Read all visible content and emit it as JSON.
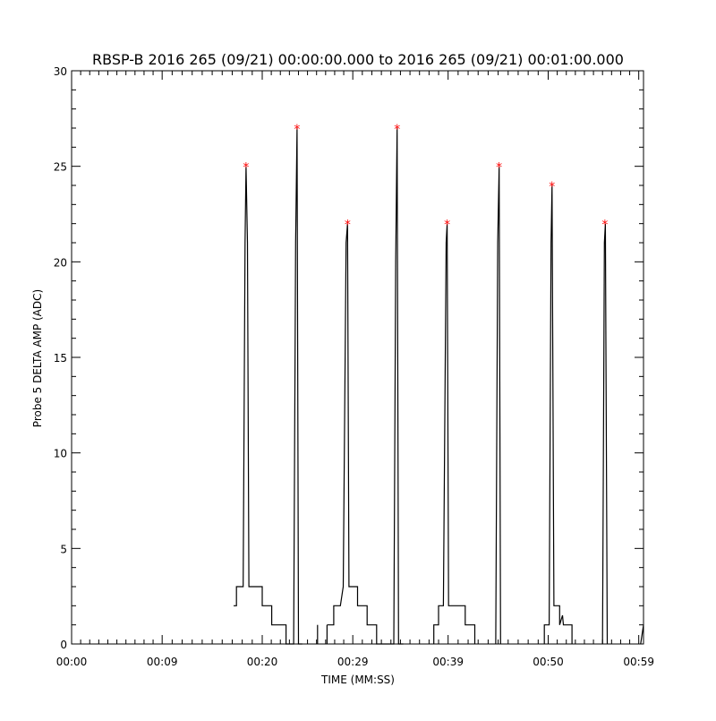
{
  "chart_data": {
    "type": "line",
    "title": "RBSP-B 2016 265 (09/21) 00:00:00.000 to 2016 265 (09/21) 00:01:00.000",
    "xlabel": "TIME (MM:SS)",
    "ylabel": "Probe 5 DELTA AMP (ADC)",
    "xlim": [
      0,
      60
    ],
    "ylim": [
      0,
      30
    ],
    "xticks": [
      {
        "value": 0,
        "label": "00:00"
      },
      {
        "value": 9.5,
        "label": "00:09"
      },
      {
        "value": 20,
        "label": "00:20"
      },
      {
        "value": 29.5,
        "label": "00:29"
      },
      {
        "value": 39.5,
        "label": "00:39"
      },
      {
        "value": 50,
        "label": "00:50"
      },
      {
        "value": 59.5,
        "label": "00:59"
      }
    ],
    "yticks": [
      0,
      5,
      10,
      15,
      20,
      25,
      30
    ],
    "grid": false,
    "series": [
      {
        "color": "#000000",
        "segments": [
          [
            [
              17.0,
              2
            ],
            [
              17.3,
              2
            ],
            [
              17.3,
              3
            ],
            [
              18.0,
              3
            ],
            [
              18.2,
              21
            ],
            [
              18.3,
              25
            ],
            [
              18.45,
              21
            ],
            [
              18.6,
              3
            ],
            [
              20.0,
              3
            ],
            [
              20.0,
              2
            ],
            [
              21.0,
              2
            ],
            [
              21.0,
              1
            ],
            [
              22.5,
              1
            ],
            [
              22.5,
              0
            ],
            [
              23.3,
              0
            ],
            [
              23.5,
              21
            ],
            [
              23.65,
              27
            ],
            [
              23.8,
              0
            ],
            [
              24.2,
              0
            ]
          ],
          [
            [
              25.8,
              0
            ],
            [
              25.8,
              1
            ]
          ],
          [
            [
              26.8,
              1
            ],
            [
              26.8,
              0
            ]
          ],
          [
            [
              26.8,
              1
            ],
            [
              27.5,
              1
            ],
            [
              27.5,
              2
            ],
            [
              28.2,
              2
            ],
            [
              28.5,
              3
            ],
            [
              28.8,
              21
            ],
            [
              28.95,
              22
            ],
            [
              29.1,
              3
            ],
            [
              30.0,
              3
            ],
            [
              30.0,
              2
            ],
            [
              31.0,
              2
            ],
            [
              31.0,
              1
            ],
            [
              32.0,
              1
            ],
            [
              32.0,
              0
            ],
            [
              33.8,
              0
            ],
            [
              34.0,
              20
            ],
            [
              34.15,
              27
            ],
            [
              34.3,
              0
            ],
            [
              34.8,
              0
            ]
          ],
          [
            [
              38.0,
              0
            ],
            [
              38.0,
              1
            ],
            [
              38.5,
              1
            ],
            [
              38.5,
              2
            ],
            [
              39.0,
              2
            ],
            [
              39.3,
              21
            ],
            [
              39.4,
              22
            ],
            [
              39.55,
              2
            ],
            [
              41.3,
              2
            ],
            [
              41.3,
              1
            ],
            [
              42.3,
              1
            ],
            [
              42.3,
              0
            ]
          ],
          [
            [
              44.5,
              0
            ],
            [
              44.7,
              21
            ],
            [
              44.85,
              25
            ],
            [
              45.0,
              0
            ]
          ],
          [
            [
              49.6,
              0
            ],
            [
              49.6,
              1
            ],
            [
              50.1,
              1
            ],
            [
              50.3,
              21
            ],
            [
              50.4,
              24
            ],
            [
              50.6,
              2
            ],
            [
              51.2,
              2
            ],
            [
              51.2,
              1
            ],
            [
              51.5,
              1.5
            ],
            [
              51.6,
              1
            ],
            [
              52.5,
              1
            ],
            [
              52.5,
              0
            ]
          ],
          [
            [
              55.7,
              0
            ],
            [
              55.9,
              21
            ],
            [
              56.0,
              22
            ],
            [
              56.2,
              0
            ]
          ],
          [
            [
              59.7,
              0
            ],
            [
              60.0,
              1
            ]
          ]
        ]
      }
    ],
    "markers": {
      "symbol": "*",
      "color": "#ff0000",
      "points": [
        [
          18.3,
          25
        ],
        [
          23.65,
          27
        ],
        [
          28.95,
          22
        ],
        [
          34.15,
          27
        ],
        [
          39.4,
          22
        ],
        [
          44.85,
          25
        ],
        [
          50.4,
          24
        ],
        [
          55.95,
          22
        ]
      ]
    }
  }
}
